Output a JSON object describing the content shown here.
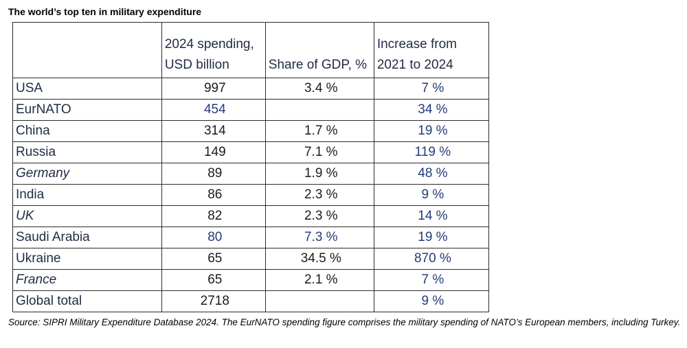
{
  "title": "The world’s top ten in military expenditure",
  "table": {
    "headers": {
      "country": "",
      "spending_line1": "2024 spending,",
      "spending_line2": "USD billion",
      "gdp": "Share of GDP, %",
      "increase_line1": "Increase from",
      "increase_line2": "2021 to 2024"
    },
    "rows": [
      {
        "country": "USA",
        "spending": "997",
        "gdp": "3.4 %",
        "increase": "7 %"
      },
      {
        "country": "EurNATO",
        "spending": "454",
        "gdp": "",
        "increase": "34 %"
      },
      {
        "country": "China",
        "spending": "314",
        "gdp": "1.7 %",
        "increase": "19 %"
      },
      {
        "country": "Russia",
        "spending": "149",
        "gdp": "7.1 %",
        "increase": "119 %"
      },
      {
        "country": "Germany",
        "spending": "89",
        "gdp": "1.9 %",
        "increase": "48 %"
      },
      {
        "country": "India",
        "spending": "86",
        "gdp": "2.3 %",
        "increase": "9 %"
      },
      {
        "country": "UK",
        "spending": "82",
        "gdp": "2.3 %",
        "increase": "14 %"
      },
      {
        "country": "Saudi Arabia",
        "spending": "80",
        "gdp": "7.3 %",
        "increase": "19 %"
      },
      {
        "country": "Ukraine",
        "spending": "65",
        "gdp": "34.5 %",
        "increase": "870 %"
      },
      {
        "country": "France",
        "spending": "65",
        "gdp": "2.1 %",
        "increase": "7 %"
      },
      {
        "country": "Global total",
        "spending": "2718",
        "gdp": "",
        "increase": "9 %"
      }
    ]
  },
  "source": "Source: SIPRI Military Expenditure Database 2024. The EurNATO spending figure comprises the military spending of NATO’s European members, including Turkey."
}
